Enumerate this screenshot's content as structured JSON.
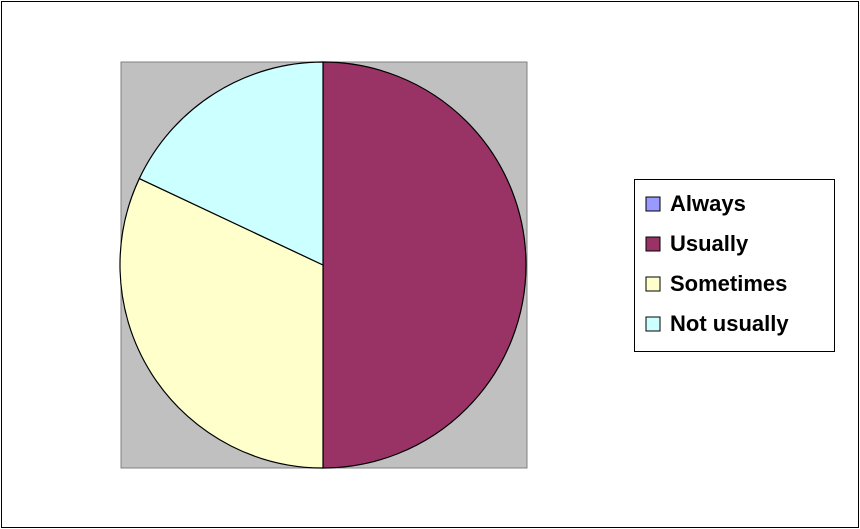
{
  "chart_data": {
    "type": "pie",
    "categories": [
      "Always",
      "Usually",
      "Sometimes",
      "Not usually"
    ],
    "values": [
      0,
      50,
      32,
      18
    ],
    "colors": [
      "#9999ff",
      "#993366",
      "#ffffcc",
      "#ccffff"
    ],
    "legend": "right"
  }
}
